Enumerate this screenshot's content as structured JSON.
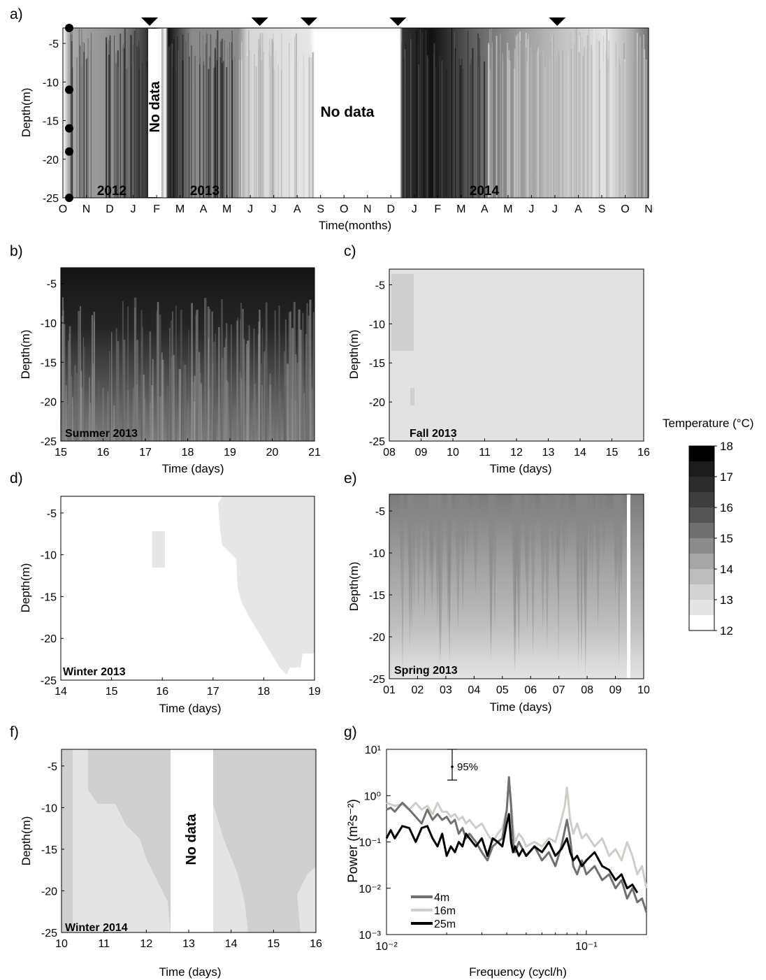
{
  "panel_letters": [
    "a)",
    "b)",
    "c)",
    "d)",
    "e)",
    "f)",
    "g)"
  ],
  "colorbar": {
    "title": "Temperature (°C)",
    "ticks": [
      "18",
      "17",
      "16",
      "15",
      "14",
      "13",
      "12"
    ],
    "levels": [
      "#000000",
      "#1c1c1c",
      "#2c2c2c",
      "#3e3e3e",
      "#555555",
      "#707070",
      "#8c8c8c",
      "#a6a6a6",
      "#bdbdbd",
      "#d2d2d2",
      "#e4e4e4",
      "#ffffff"
    ]
  },
  "chart_data": [
    {
      "id": "a",
      "type": "heatmap",
      "xlabel": "Time(months)",
      "ylabel": "Depth(m)",
      "ylim": [
        -25,
        -3
      ],
      "y_ticks": [
        "-5",
        "-10",
        "-15",
        "-20",
        "-25"
      ],
      "x_ticks": [
        "O",
        "N",
        "D",
        "J",
        "F",
        "M",
        "A",
        "M",
        "J",
        "J",
        "A",
        "S",
        "O",
        "N",
        "D",
        "J",
        "F",
        "M",
        "A",
        "M",
        "J",
        "J",
        "A",
        "S",
        "O",
        "N"
      ],
      "year_labels": [
        "2012",
        "2013",
        "2014"
      ],
      "annotations": [
        "No data",
        "No data"
      ],
      "sensor_depths": [
        -3,
        -11,
        -16,
        -19,
        -25
      ],
      "triangle_markers": [
        "end of January 2013",
        "mid June 2013",
        "early August 2013",
        "early December 2013",
        "early July 2014"
      ],
      "segments": [
        {
          "period": "Oct 2012 - Jan 2013",
          "temperature": [
            13,
            17
          ]
        },
        {
          "period": "Feb 2013 - May 2013",
          "temperature": [
            13,
            16
          ]
        },
        {
          "period": "Jun 2013 - Aug 2013",
          "temperature": [
            12,
            13
          ]
        },
        {
          "period": "Dec 2013 - Mar 2014",
          "temperature": [
            13,
            18
          ]
        },
        {
          "period": "Mar 2014 - Nov 2014",
          "temperature": [
            12,
            15
          ]
        }
      ]
    },
    {
      "id": "b",
      "type": "heatmap",
      "label": "Summer 2013",
      "xlabel": "Time (days)",
      "ylabel": "Depth(m)",
      "x_ticks": [
        "15",
        "16",
        "17",
        "18",
        "19",
        "20",
        "21"
      ],
      "y_ticks": [
        "-5",
        "-10",
        "-15",
        "-20",
        "-25"
      ],
      "temperature_range": [
        13,
        18
      ]
    },
    {
      "id": "c",
      "type": "heatmap",
      "label": "Fall 2013",
      "xlabel": "Time (days)",
      "ylabel": "Depth(m)",
      "x_ticks": [
        "08",
        "09",
        "10",
        "11",
        "12",
        "13",
        "14",
        "15",
        "16"
      ],
      "y_ticks": [
        "-5",
        "-10",
        "-15",
        "-20",
        "-25"
      ],
      "temperature_range": [
        12,
        13
      ]
    },
    {
      "id": "d",
      "type": "heatmap",
      "label": "Winter 2013",
      "xlabel": "Time (days)",
      "ylabel": "Depth(m)",
      "x_ticks": [
        "14",
        "15",
        "16",
        "17",
        "18",
        "19"
      ],
      "y_ticks": [
        "-5",
        "-10",
        "-15",
        "-20",
        "-25"
      ],
      "temperature_range": [
        12,
        13
      ]
    },
    {
      "id": "e",
      "type": "heatmap",
      "label": "Spring 2013",
      "xlabel": "Time (days)",
      "ylabel": "Depth(m)",
      "x_ticks": [
        "01",
        "02",
        "03",
        "04",
        "05",
        "06",
        "07",
        "08",
        "09",
        "10"
      ],
      "y_ticks": [
        "-5",
        "-10",
        "-15",
        "-20",
        "-25"
      ],
      "temperature_range": [
        12,
        15
      ]
    },
    {
      "id": "f",
      "type": "heatmap",
      "label": "Winter 2014",
      "xlabel": "Time (days)",
      "ylabel": "Depth(m)",
      "x_ticks": [
        "10",
        "11",
        "12",
        "13",
        "14",
        "15",
        "16"
      ],
      "y_ticks": [
        "-5",
        "-10",
        "-15",
        "-20",
        "-25"
      ],
      "annotations": [
        "No data"
      ],
      "temperature_range": [
        12,
        13
      ]
    },
    {
      "id": "g",
      "type": "line",
      "xlabel": "Frequency (cycl/h)",
      "ylabel": "Power (m²s⁻²)",
      "x_scale": "log",
      "y_scale": "log",
      "xlim": [
        0.01,
        0.2
      ],
      "ylim": [
        0.001,
        10
      ],
      "x_ticks": [
        "10⁻²",
        "10⁻¹"
      ],
      "y_ticks": [
        "10¹",
        "10⁰",
        "10⁻¹",
        "10⁻²",
        "10⁻³"
      ],
      "confidence_label": "95%",
      "legend": [
        "4m",
        "16m",
        "25m"
      ],
      "series": [
        {
          "name": "4m",
          "color": "#707070",
          "x": [
            0.01,
            0.0105,
            0.011,
            0.012,
            0.013,
            0.014,
            0.015,
            0.016,
            0.017,
            0.018,
            0.019,
            0.02,
            0.021,
            0.022,
            0.023,
            0.024,
            0.025,
            0.026,
            0.028,
            0.03,
            0.032,
            0.034,
            0.036,
            0.038,
            0.04,
            0.041,
            0.042,
            0.043,
            0.044,
            0.046,
            0.048,
            0.05,
            0.055,
            0.06,
            0.065,
            0.07,
            0.075,
            0.08,
            0.083,
            0.086,
            0.09,
            0.095,
            0.1,
            0.11,
            0.12,
            0.13,
            0.14,
            0.15,
            0.16,
            0.17,
            0.18,
            0.19,
            0.2
          ],
          "y": [
            0.5,
            0.55,
            0.45,
            0.7,
            0.5,
            0.35,
            0.25,
            0.5,
            0.3,
            0.4,
            0.3,
            0.35,
            0.25,
            0.3,
            0.15,
            0.2,
            0.12,
            0.15,
            0.1,
            0.06,
            0.04,
            0.08,
            0.1,
            0.12,
            0.5,
            2.5,
            0.6,
            0.1,
            0.06,
            0.1,
            0.07,
            0.05,
            0.08,
            0.04,
            0.06,
            0.03,
            0.08,
            0.3,
            0.12,
            0.03,
            0.02,
            0.04,
            0.02,
            0.03,
            0.015,
            0.02,
            0.01,
            0.015,
            0.006,
            0.01,
            0.005,
            0.006,
            0.003
          ]
        },
        {
          "name": "16m",
          "color": "#d0cdc6",
          "x": [
            0.01,
            0.011,
            0.012,
            0.013,
            0.014,
            0.015,
            0.016,
            0.017,
            0.018,
            0.019,
            0.02,
            0.021,
            0.022,
            0.023,
            0.024,
            0.025,
            0.026,
            0.028,
            0.03,
            0.032,
            0.034,
            0.036,
            0.038,
            0.04,
            0.041,
            0.042,
            0.043,
            0.044,
            0.046,
            0.048,
            0.05,
            0.055,
            0.06,
            0.065,
            0.07,
            0.075,
            0.078,
            0.08,
            0.083,
            0.086,
            0.09,
            0.095,
            0.1,
            0.11,
            0.12,
            0.13,
            0.14,
            0.15,
            0.16,
            0.17,
            0.18,
            0.19,
            0.2
          ],
          "y": [
            0.7,
            0.6,
            0.65,
            0.5,
            0.7,
            0.5,
            0.6,
            0.4,
            0.7,
            0.45,
            0.45,
            0.35,
            0.4,
            0.3,
            0.35,
            0.25,
            0.3,
            0.2,
            0.25,
            0.15,
            0.1,
            0.15,
            0.2,
            0.5,
            2.0,
            0.8,
            0.2,
            0.1,
            0.15,
            0.12,
            0.08,
            0.1,
            0.08,
            0.12,
            0.1,
            0.3,
            0.6,
            1.5,
            0.3,
            0.15,
            0.25,
            0.12,
            0.15,
            0.08,
            0.12,
            0.05,
            0.07,
            0.04,
            0.1,
            0.05,
            0.02,
            0.03,
            0.01
          ]
        },
        {
          "name": "25m",
          "color": "#000000",
          "x": [
            0.01,
            0.0105,
            0.011,
            0.012,
            0.013,
            0.014,
            0.015,
            0.016,
            0.017,
            0.018,
            0.019,
            0.02,
            0.021,
            0.022,
            0.023,
            0.024,
            0.025,
            0.026,
            0.028,
            0.03,
            0.032,
            0.034,
            0.036,
            0.038,
            0.04,
            0.041,
            0.042,
            0.043,
            0.044,
            0.046,
            0.048,
            0.05,
            0.055,
            0.06,
            0.065,
            0.07,
            0.075,
            0.08,
            0.083,
            0.086,
            0.09,
            0.095,
            0.1,
            0.11,
            0.12,
            0.13,
            0.14,
            0.15,
            0.16,
            0.17,
            0.18
          ],
          "y": [
            0.12,
            0.18,
            0.12,
            0.22,
            0.2,
            0.1,
            0.2,
            0.22,
            0.12,
            0.08,
            0.15,
            0.05,
            0.08,
            0.06,
            0.1,
            0.08,
            0.15,
            0.12,
            0.08,
            0.12,
            0.05,
            0.12,
            0.1,
            0.08,
            0.25,
            0.4,
            0.1,
            0.06,
            0.08,
            0.05,
            0.07,
            0.05,
            0.08,
            0.06,
            0.1,
            0.05,
            0.07,
            0.12,
            0.06,
            0.04,
            0.05,
            0.03,
            0.04,
            0.06,
            0.03,
            0.025,
            0.015,
            0.02,
            0.01,
            0.012,
            0.008
          ]
        }
      ]
    }
  ]
}
